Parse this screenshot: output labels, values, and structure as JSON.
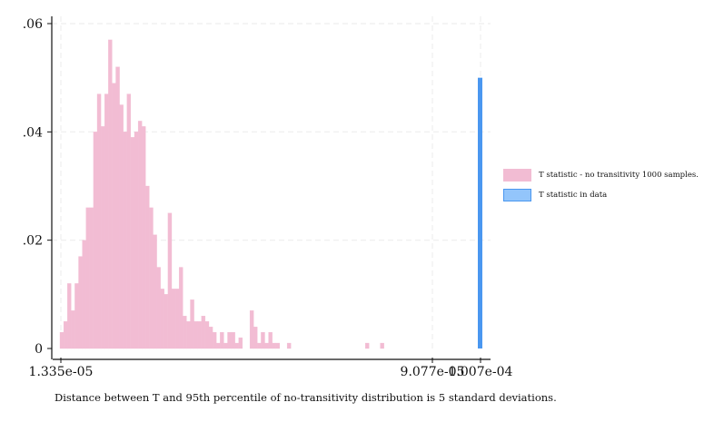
{
  "chart_data": {
    "type": "bar",
    "title": "",
    "xlabel": "",
    "ylabel": "",
    "ylim": [
      0,
      0.06
    ],
    "grid": true,
    "legend_position": "right",
    "y_ticks": [
      {
        "value": 0,
        "label": "0"
      },
      {
        "value": 0.02,
        "label": ".02"
      },
      {
        "value": 0.04,
        "label": ".04"
      },
      {
        "value": 0.06,
        "label": ".06"
      }
    ],
    "x_ticks": [
      "1.335e-05",
      "9.077e-05",
      "1.007e-04"
    ],
    "series": [
      {
        "name": "T statistic - no transitivity 1000 samples.",
        "color": "#f2bcd3",
        "values": [
          0.003,
          0.005,
          0.012,
          0.007,
          0.012,
          0.017,
          0.02,
          0.026,
          0.026,
          0.04,
          0.047,
          0.041,
          0.047,
          0.057,
          0.049,
          0.052,
          0.045,
          0.04,
          0.047,
          0.039,
          0.04,
          0.042,
          0.041,
          0.03,
          0.026,
          0.021,
          0.015,
          0.011,
          0.01,
          0.025,
          0.011,
          0.011,
          0.015,
          0.006,
          0.005,
          0.009,
          0.005,
          0.005,
          0.006,
          0.005,
          0.004,
          0.003,
          0.001,
          0.003,
          0.001,
          0.003,
          0.003,
          0.001,
          0.002,
          0,
          0,
          0.007,
          0.004,
          0.001,
          0.003,
          0.001,
          0.003,
          0.001,
          0.001,
          0,
          0,
          0.001,
          0,
          0,
          0,
          0,
          0,
          0,
          0,
          0,
          0,
          0,
          0,
          0,
          0,
          0,
          0,
          0,
          0,
          0,
          0,
          0,
          0.001,
          0,
          0,
          0,
          0.001,
          0,
          0,
          0,
          0,
          0,
          0,
          0,
          0,
          0,
          0
        ]
      },
      {
        "name": "T statistic in data",
        "color": "#4a97f0",
        "x": "1.007e-04",
        "value": 0.05
      }
    ]
  },
  "legend": {
    "item1": "T statistic - no transitivity 1000 samples.",
    "item2": "T statistic in data"
  },
  "note": "Distance between T and 95th percentile of no-transitivity distribution is 5 standard deviations."
}
